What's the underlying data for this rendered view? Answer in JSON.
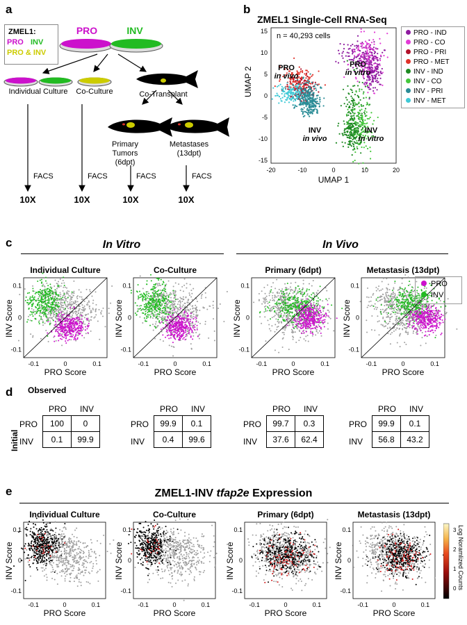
{
  "colors": {
    "pro": "#CC11CC",
    "inv": "#22BB22",
    "both": "#CCCC00",
    "grey": "#A0A0A0",
    "pro_ind": "#8E1BA0",
    "pro_co": "#E23AD6",
    "pro_pri": "#B2122A",
    "pro_met": "#E0322A",
    "inv_ind": "#1E8A22",
    "inv_co": "#45C83C",
    "inv_pri": "#2A8C96",
    "inv_met": "#40C9D6"
  },
  "panel_a": {
    "letter": "a",
    "key": {
      "title": "ZMEL1:",
      "pro": "PRO",
      "inv": "INV",
      "both": "PRO & INV"
    },
    "dish_pro": "PRO",
    "dish_inv": "INV",
    "branches": [
      "Individual Culture",
      "Co-Culture",
      "Co-Transplant"
    ],
    "primary": "Primary Tumors (6dpt)",
    "primary_lines": [
      "Primary",
      "Tumors",
      "(6dpt)"
    ],
    "metastases_lines": [
      "Metastases",
      "(13dpt)"
    ],
    "facs": "FACS",
    "tenx": "10X"
  },
  "panel_b": {
    "letter": "b",
    "title": "ZMEL1 Single-Cell RNA-Seq",
    "n_cells": "n = 40,293 cells",
    "xlabel": "UMAP 1",
    "ylabel": "UMAP 2",
    "xticks": [
      "-20",
      "-10",
      "0",
      "10",
      "20"
    ],
    "yticks": [
      "15",
      "10",
      "5",
      "0",
      "-5",
      "-10",
      "-15"
    ],
    "cluster_labels": [
      {
        "top": "PRO",
        "bottom": "in vitro"
      },
      {
        "top": "PRO",
        "bottom": "in vivo"
      },
      {
        "top": "INV",
        "bottom": "in vivo"
      },
      {
        "top": "INV",
        "bottom": "in vitro"
      }
    ],
    "legend": [
      {
        "label": "PRO - IND",
        "color": "#8E1BA0"
      },
      {
        "label": "PRO - CO",
        "color": "#E23AD6"
      },
      {
        "label": "PRO - PRI",
        "color": "#B2122A"
      },
      {
        "label": "PRO - MET",
        "color": "#E0322A"
      },
      {
        "label": "INV - IND",
        "color": "#1E8A22"
      },
      {
        "label": "INV - CO",
        "color": "#45C83C"
      },
      {
        "label": "INV - PRI",
        "color": "#2A8C96"
      },
      {
        "label": "INV - MET",
        "color": "#40C9D6"
      }
    ]
  },
  "panel_c": {
    "letter": "c",
    "header_vitro": "In Vitro",
    "header_vivo": "In Vivo",
    "titles": [
      "Individual Culture",
      "Co-Culture",
      "Primary (6dpt)",
      "Metastasis (13dpt)"
    ],
    "xlabel": "PRO Score",
    "ylabel": "INV Score",
    "xticks": [
      "-0.1",
      "0",
      "0.1"
    ],
    "yticks": [
      "0.1",
      "0",
      "-0.1"
    ],
    "legend": [
      {
        "label": "PRO",
        "color": "#CC11CC"
      },
      {
        "label": "INV",
        "color": "#22BB22"
      }
    ]
  },
  "panel_d": {
    "letter": "d",
    "observed": "Observed",
    "initial": "Initial",
    "col_headers": [
      "PRO",
      "INV"
    ],
    "row_headers": [
      "PRO",
      "INV"
    ],
    "tables": [
      [
        [
          "100",
          "0"
        ],
        [
          "0.1",
          "99.9"
        ]
      ],
      [
        [
          "99.9",
          "0.1"
        ],
        [
          "0.4",
          "99.6"
        ]
      ],
      [
        [
          "99.7",
          "0.3"
        ],
        [
          "37.6",
          "62.4"
        ]
      ],
      [
        [
          "99.9",
          "0.1"
        ],
        [
          "56.8",
          "43.2"
        ]
      ]
    ]
  },
  "panel_e": {
    "letter": "e",
    "title_prefix": "ZMEL1-INV ",
    "title_gene": "tfap2e",
    "title_suffix": " Expression",
    "titles": [
      "Individual Culture",
      "Co-Culture",
      "Primary (6dpt)",
      "Metastasis (13dpt)"
    ],
    "xlabel": "PRO Score",
    "ylabel": "INV Score",
    "xticks": [
      "-0.1",
      "0",
      "0.1"
    ],
    "yticks": [
      "0.1",
      "0",
      "-0.1"
    ],
    "colorbar_label": "Log Noramlized Counts",
    "colorbar_ticks": [
      "3",
      "2",
      "1",
      "0"
    ]
  }
}
